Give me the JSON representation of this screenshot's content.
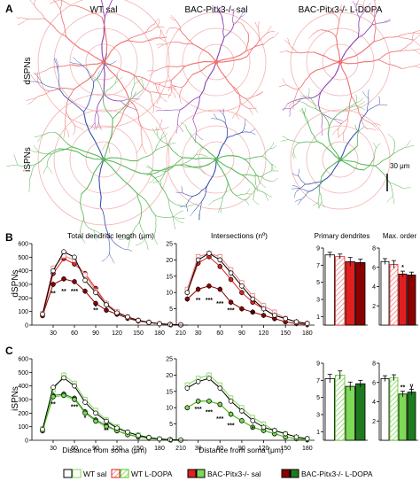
{
  "panel_letters": [
    "A",
    "B",
    "C"
  ],
  "panel_a": {
    "columns": [
      "WT sal",
      "BAC-Pitx3-/- sal",
      "BAC-Pitx3-/- L-DOPA"
    ],
    "rows": [
      "dSPNs",
      "iSPNs"
    ],
    "scale_bar": "30 μm"
  },
  "row_labels": [
    "dSPNs",
    "iSPNs"
  ],
  "titles": {
    "length": "Total dendritic length (μm)",
    "intersections": "Intersections (nº)",
    "primary": "Primary dendrites",
    "maxorder": "Max. order"
  },
  "xlabel": "Distance from soma (μm)",
  "legend": [
    "WT sal",
    "WT L-DOPA",
    "BAC-Pitx3-/- sal",
    "BAC-Pitx3-/- L-DOPA"
  ],
  "colors": {
    "wt_sal": "#ffffff",
    "d_wt_ldopa": "#f08080",
    "d_pitx_sal": "#e02020",
    "d_pitx_ldopa": "#8b0000",
    "i_wt_ldopa": "#7ed957",
    "i_pitx_sal": "#52c41a",
    "i_pitx_ldopa": "#1e7a1e",
    "dspn_trace": "#f07070",
    "dspn_axon": "#8a3fb0",
    "ispn_trace": "#5cb85c",
    "ispn_axon": "#3a50b0",
    "ring": "#f4b0b0"
  },
  "chart_data": [
    {
      "id": "B-length",
      "type": "line",
      "row": "dSPNs",
      "title": "Total dendritic length (μm)",
      "x": [
        15,
        30,
        45,
        60,
        75,
        90,
        105,
        120,
        135,
        150,
        165,
        180,
        195,
        210
      ],
      "xticks": [
        30,
        60,
        90,
        120,
        150,
        180,
        210
      ],
      "ylim": [
        0,
        600
      ],
      "yticks": [
        0,
        100,
        200,
        300,
        400,
        500,
        600
      ],
      "series": [
        {
          "name": "WT sal",
          "values": [
            80,
            400,
            540,
            500,
            330,
            240,
            150,
            90,
            60,
            35,
            20,
            10,
            5,
            2
          ]
        },
        {
          "name": "WT L-DOPA",
          "values": [
            85,
            420,
            510,
            480,
            370,
            250,
            160,
            100,
            60,
            35,
            20,
            10,
            5,
            2
          ]
        },
        {
          "name": "BAC-Pitx3-/- sal",
          "values": [
            70,
            380,
            490,
            450,
            380,
            270,
            160,
            100,
            60,
            35,
            20,
            10,
            5,
            2
          ]
        },
        {
          "name": "BAC-Pitx3-/- L-DOPA",
          "values": [
            70,
            300,
            340,
            320,
            250,
            160,
            110,
            80,
            50,
            30,
            20,
            10,
            5,
            2
          ]
        }
      ],
      "stars": [
        {
          "x": 30,
          "y": 220,
          "t": "**"
        },
        {
          "x": 45,
          "y": 235,
          "t": "**"
        },
        {
          "x": 60,
          "y": 235,
          "t": "***"
        },
        {
          "x": 90,
          "y": 120,
          "t": "*"
        },
        {
          "x": 90,
          "y": 95,
          "t": "**"
        }
      ]
    },
    {
      "id": "B-inter",
      "type": "line",
      "row": "dSPNs",
      "title": "Intersections (nº)",
      "x": [
        15,
        30,
        45,
        60,
        75,
        90,
        105,
        120,
        135,
        150,
        165,
        180
      ],
      "xticks": [
        30,
        60,
        90,
        120,
        150,
        180
      ],
      "ylim": [
        0,
        25
      ],
      "yticks": [
        0,
        5,
        10,
        15,
        20,
        25
      ],
      "series": [
        {
          "name": "WT sal",
          "values": [
            10,
            20,
            22,
            20,
            16,
            12,
            8,
            5,
            3,
            2,
            1,
            0.5
          ]
        },
        {
          "name": "WT L-DOPA",
          "values": [
            11,
            21,
            22,
            21,
            17,
            13,
            9,
            6,
            4,
            2,
            1,
            0.5
          ]
        },
        {
          "name": "BAC-Pitx3-/- sal",
          "values": [
            10,
            19,
            21,
            18,
            14,
            10,
            7,
            5,
            3,
            2,
            1,
            0.5
          ]
        },
        {
          "name": "BAC-Pitx3-/- L-DOPA",
          "values": [
            8,
            11,
            12,
            11,
            7,
            5,
            4,
            3,
            2,
            1,
            0.5,
            0.2
          ]
        }
      ],
      "stars": [
        {
          "x": 30,
          "y": 7,
          "t": "**"
        },
        {
          "x": 45,
          "y": 7,
          "t": "***"
        },
        {
          "x": 60,
          "y": 6,
          "t": "***"
        },
        {
          "x": 75,
          "y": 4,
          "t": "***"
        },
        {
          "x": 105,
          "y": 3,
          "t": "**"
        }
      ]
    },
    {
      "id": "B-primary",
      "type": "bar",
      "row": "dSPNs",
      "title": "Primary dendrites",
      "ylim": [
        0,
        9
      ],
      "yticks": [
        1,
        3,
        5,
        7,
        9
      ],
      "categories": [
        "WT sal",
        "WT L-DOPA",
        "BAC-Pitx3-/- sal",
        "BAC-Pitx3-/- L-DOPA"
      ],
      "values": [
        8.2,
        8.0,
        7.4,
        7.3
      ],
      "errors": [
        0.3,
        0.3,
        0.5,
        0.4
      ]
    },
    {
      "id": "B-maxorder",
      "type": "bar",
      "row": "dSPNs",
      "title": "Max. order",
      "ylim": [
        0,
        8
      ],
      "yticks": [
        2,
        4,
        6,
        8
      ],
      "categories": [
        "WT sal",
        "WT L-DOPA",
        "BAC-Pitx3-/- sal",
        "BAC-Pitx3-/- L-DOPA"
      ],
      "values": [
        6.6,
        6.3,
        5.3,
        5.2
      ],
      "errors": [
        0.3,
        0.4,
        0.3,
        0.3
      ],
      "stars": [
        {
          "i": 2,
          "t": "*"
        }
      ]
    },
    {
      "id": "C-length",
      "type": "line",
      "row": "iSPNs",
      "title": "",
      "x": [
        15,
        30,
        45,
        60,
        75,
        90,
        105,
        120,
        135,
        150,
        165,
        180,
        195,
        210
      ],
      "xticks": [
        30,
        60,
        90,
        120,
        150,
        180,
        210
      ],
      "ylim": [
        0,
        600
      ],
      "yticks": [
        0,
        100,
        200,
        300,
        400,
        500,
        600
      ],
      "series": [
        {
          "name": "WT sal",
          "values": [
            80,
            390,
            460,
            400,
            280,
            200,
            140,
            90,
            60,
            35,
            20,
            10,
            5,
            2
          ]
        },
        {
          "name": "WT L-DOPA",
          "values": [
            85,
            370,
            480,
            420,
            300,
            220,
            150,
            100,
            60,
            40,
            20,
            10,
            5,
            2
          ]
        },
        {
          "name": "BAC-Pitx3-/- sal",
          "values": [
            70,
            320,
            330,
            300,
            200,
            140,
            100,
            70,
            40,
            25,
            15,
            8,
            4,
            1
          ]
        },
        {
          "name": "BAC-Pitx3-/- L-DOPA",
          "values": [
            70,
            330,
            340,
            310,
            210,
            150,
            110,
            70,
            45,
            25,
            15,
            8,
            4,
            1
          ]
        }
      ],
      "stars": [
        {
          "x": 30,
          "y": 250,
          "t": "**"
        },
        {
          "x": 60,
          "y": 230,
          "t": "***"
        },
        {
          "x": 75,
          "y": 150,
          "t": "*"
        },
        {
          "x": 105,
          "y": 60,
          "t": "**"
        }
      ]
    },
    {
      "id": "C-inter",
      "type": "line",
      "row": "iSPNs",
      "title": "",
      "x": [
        15,
        30,
        45,
        60,
        75,
        90,
        105,
        120,
        135,
        150,
        165,
        180
      ],
      "xticks": [
        30,
        60,
        90,
        120,
        150,
        180
      ],
      "ylim": [
        0,
        25
      ],
      "yticks": [
        0,
        5,
        10,
        15,
        20,
        25
      ],
      "series": [
        {
          "name": "WT sal",
          "values": [
            16,
            18,
            19,
            16,
            12,
            9,
            6,
            4,
            3,
            2,
            1,
            0.5
          ]
        },
        {
          "name": "WT L-DOPA",
          "values": [
            17,
            19,
            20,
            17,
            13,
            10,
            7,
            5,
            3,
            2,
            1,
            0.5
          ]
        },
        {
          "name": "BAC-Pitx3-/- sal",
          "values": [
            10,
            12,
            12,
            11,
            8,
            6,
            4,
            3,
            2,
            1,
            0.5,
            0.2
          ]
        },
        {
          "name": "BAC-Pitx3-/- L-DOPA",
          "values": [
            10,
            12,
            12,
            11,
            8,
            6,
            4,
            3,
            2,
            1,
            0.5,
            0.2
          ]
        }
      ],
      "stars": [
        {
          "x": 30,
          "y": 9,
          "t": "***"
        },
        {
          "x": 45,
          "y": 8,
          "t": "***"
        },
        {
          "x": 60,
          "y": 6,
          "t": "***"
        },
        {
          "x": 75,
          "y": 4,
          "t": "***"
        },
        {
          "x": 105,
          "y": 3,
          "t": "*"
        }
      ]
    },
    {
      "id": "C-primary",
      "type": "bar",
      "row": "iSPNs",
      "title": "",
      "ylim": [
        0,
        9
      ],
      "yticks": [
        1,
        3,
        5,
        7,
        9
      ],
      "categories": [
        "WT sal",
        "WT L-DOPA",
        "BAC-Pitx3-/- sal",
        "BAC-Pitx3-/- L-DOPA"
      ],
      "values": [
        7.2,
        7.6,
        6.3,
        6.6
      ],
      "errors": [
        0.5,
        0.5,
        0.5,
        0.4
      ]
    },
    {
      "id": "C-maxorder",
      "type": "bar",
      "row": "iSPNs",
      "title": "",
      "ylim": [
        0,
        8
      ],
      "yticks": [
        2,
        4,
        6,
        8
      ],
      "categories": [
        "WT sal",
        "WT L-DOPA",
        "BAC-Pitx3-/- sal",
        "BAC-Pitx3-/- L-DOPA"
      ],
      "values": [
        6.4,
        6.5,
        4.8,
        5.0
      ],
      "errors": [
        0.3,
        0.3,
        0.3,
        0.3
      ],
      "stars": [
        {
          "i": 2,
          "t": "**"
        },
        {
          "i": 3,
          "t": "γ"
        }
      ]
    }
  ]
}
